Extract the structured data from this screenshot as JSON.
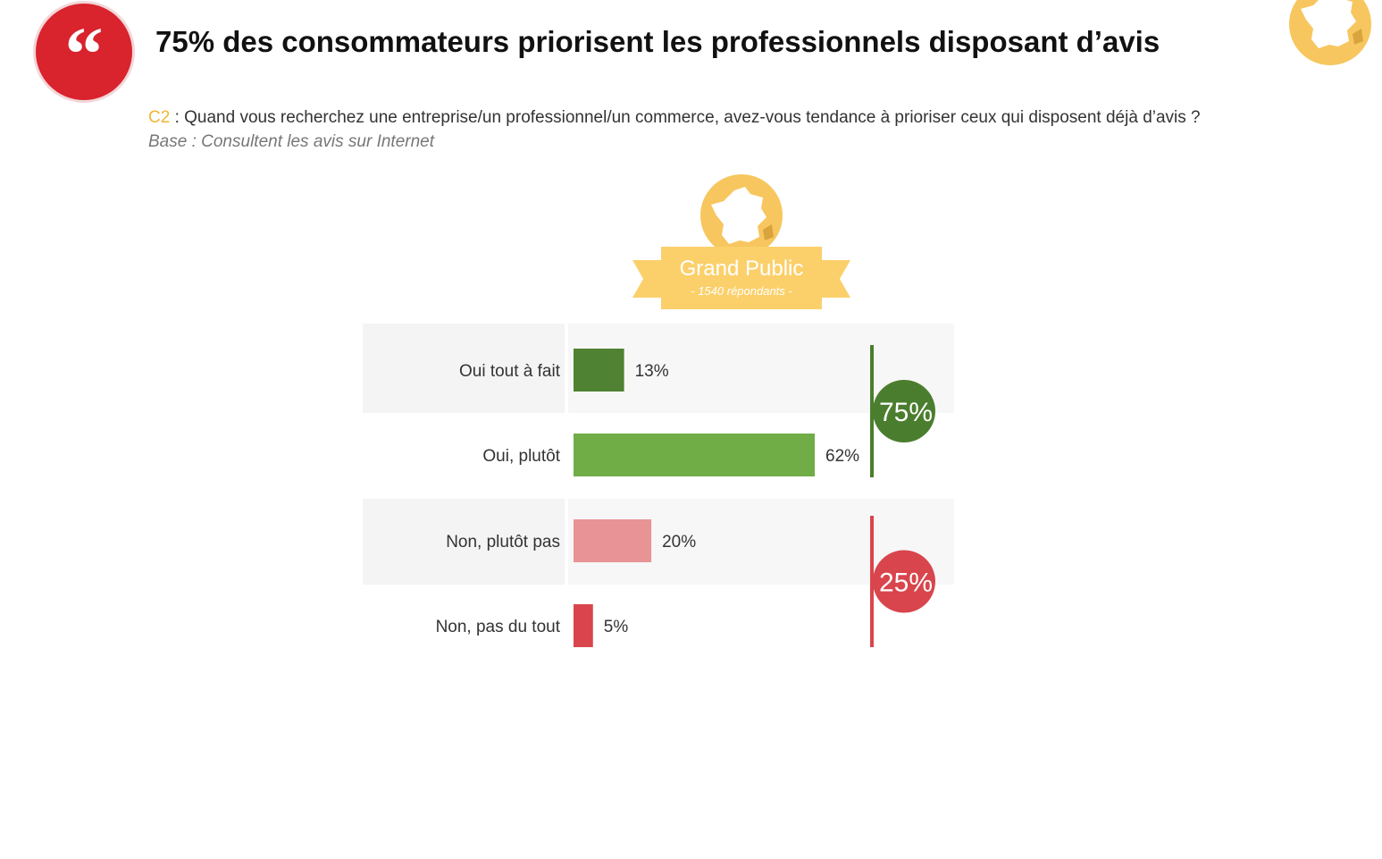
{
  "header": {
    "title": "75% des consommateurs priorisent les professionnels disposant d’avis",
    "question_code": "C2",
    "question_text": " : Quand vous recherchez une entreprise/un professionnel/un commerce, avez-vous tendance à prioriser ceux qui disposent déjà d’avis ?",
    "base": "Base : Consultent les avis sur Internet"
  },
  "badge": {
    "title": "Grand Public",
    "subtitle": "- 1540 répondants -"
  },
  "colors": {
    "brand_red": "#d9232d",
    "accent_yellow": "#f2b632",
    "badge_yellow": "#fbd06b"
  },
  "icons": [
    "quote-icon",
    "france-map-icon"
  ],
  "chart_data": {
    "type": "bar",
    "orientation": "horizontal",
    "categories": [
      "Oui tout à fait",
      "Oui, plutôt",
      "Non, plutôt pas",
      "Non, pas du tout"
    ],
    "values": [
      13,
      62,
      20,
      5
    ],
    "value_labels": [
      "13%",
      "62%",
      "20%",
      "5%"
    ],
    "bar_colors": [
      "#4f8233",
      "#70ad47",
      "#e89396",
      "#d9454c"
    ],
    "groups": [
      {
        "label": "75%",
        "value": 75,
        "categories": [
          "Oui tout à fait",
          "Oui, plutôt"
        ],
        "color": "#4a7e2e"
      },
      {
        "label": "25%",
        "value": 25,
        "categories": [
          "Non, plutôt pas",
          "Non, pas du tout"
        ],
        "color": "#d9454c"
      }
    ],
    "xlim": [
      0,
      62
    ],
    "grid": false
  }
}
